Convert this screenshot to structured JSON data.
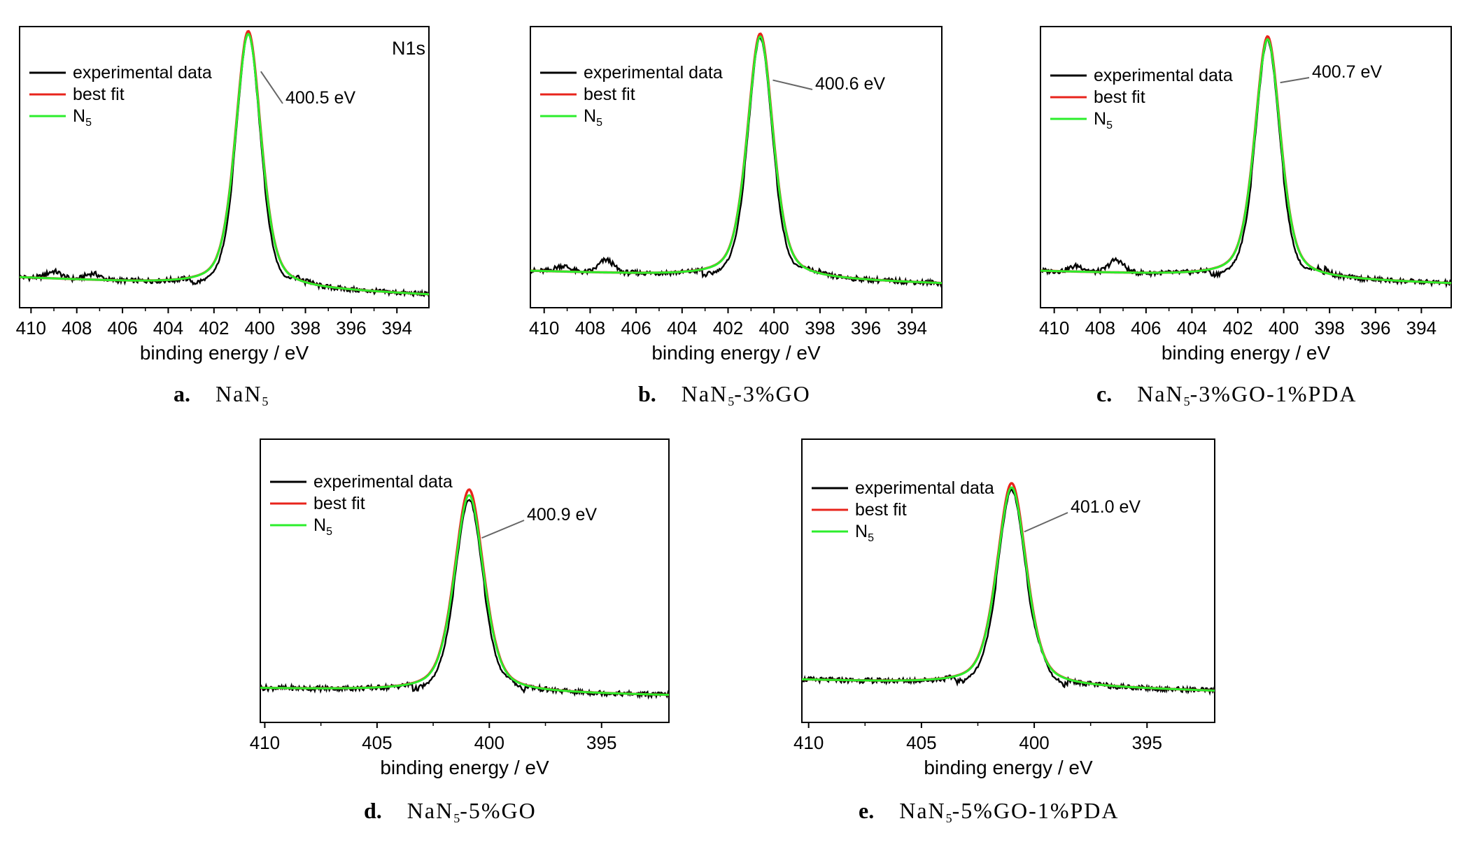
{
  "legend": {
    "experimental": "experimental data",
    "best_fit": "best fit",
    "n5_base": "N",
    "n5_sub": "5"
  },
  "colors": {
    "experimental": "#000000",
    "best_fit": "#e8241c",
    "n5": "#2cee2c",
    "axes": "#000000",
    "leader": "#666666"
  },
  "axis_label": "binding energy / eV",
  "captions": [
    {
      "letter": "a.",
      "base": "NaN",
      "sub": "5",
      "rest": ""
    },
    {
      "letter": "b.",
      "base": "NaN",
      "sub": "5",
      "rest": "-3%GO"
    },
    {
      "letter": "c.",
      "base": "NaN",
      "sub": "5",
      "rest": "-3%GO-1%PDA"
    },
    {
      "letter": "d.",
      "base": "NaN",
      "sub": "5",
      "rest": "-5%GO"
    },
    {
      "letter": "e.",
      "base": "NaN",
      "sub": "5",
      "rest": "-5%GO-1%PDA"
    }
  ],
  "chart_data": [
    {
      "type": "line",
      "corner_label": "N1s",
      "xlabel": "binding energy / eV",
      "xlim": [
        410.5,
        392.6
      ],
      "ylim": [
        0,
        1
      ],
      "x_reversed": true,
      "xticks": [
        410,
        408,
        406,
        404,
        402,
        400,
        398,
        396,
        394
      ],
      "peak_label": "400.5 eV",
      "peak_position": 400.5,
      "series": [
        {
          "name": "experimental data",
          "peak_height": 0.955,
          "width": 0.64
        },
        {
          "name": "best fit",
          "peak_height": 0.965,
          "width": 0.67
        },
        {
          "name": "N5",
          "peak_height": 0.955,
          "width": 0.67
        }
      ],
      "baseline_start": 0.107,
      "baseline_end": 0.045,
      "satellites": [
        {
          "x": 409.0,
          "h": 0.025
        },
        {
          "x": 407.3,
          "h": 0.022
        },
        {
          "x": 398.3,
          "h": 0.03
        }
      ]
    },
    {
      "type": "line",
      "xlabel": "binding energy / eV",
      "xlim": [
        410.6,
        392.7
      ],
      "ylim": [
        0,
        1
      ],
      "x_reversed": true,
      "xticks": [
        410,
        408,
        406,
        404,
        402,
        400,
        398,
        396,
        394
      ],
      "peak_label": "400.6 eV",
      "peak_position": 400.6,
      "series": [
        {
          "name": "experimental data",
          "peak_height": 0.92,
          "width": 0.64
        },
        {
          "name": "best fit",
          "peak_height": 0.935,
          "width": 0.67
        },
        {
          "name": "N5",
          "peak_height": 0.925,
          "width": 0.67
        }
      ],
      "baseline_start": 0.13,
      "baseline_end": 0.085,
      "satellites": [
        {
          "x": 409.2,
          "h": 0.02
        },
        {
          "x": 407.3,
          "h": 0.045
        },
        {
          "x": 398.5,
          "h": 0.03
        }
      ]
    },
    {
      "type": "line",
      "xlabel": "binding energy / eV",
      "xlim": [
        410.6,
        392.7
      ],
      "ylim": [
        0,
        1
      ],
      "x_reversed": true,
      "xticks": [
        410,
        408,
        406,
        404,
        402,
        400,
        398,
        396,
        394
      ],
      "peak_label": "400.7 eV",
      "peak_position": 400.7,
      "series": [
        {
          "name": "experimental data",
          "peak_height": 0.91,
          "width": 0.64
        },
        {
          "name": "best fit",
          "peak_height": 0.925,
          "width": 0.67
        },
        {
          "name": "N5",
          "peak_height": 0.915,
          "width": 0.67
        }
      ],
      "baseline_start": 0.13,
      "baseline_end": 0.085,
      "satellites": [
        {
          "x": 409.0,
          "h": 0.02
        },
        {
          "x": 407.3,
          "h": 0.045
        },
        {
          "x": 398.5,
          "h": 0.03
        }
      ]
    },
    {
      "type": "line",
      "xlabel": "binding energy / eV",
      "xlim": [
        410.2,
        392.0
      ],
      "ylim": [
        0,
        1
      ],
      "x_reversed": true,
      "xticks": [
        410,
        405,
        400,
        395
      ],
      "peak_label": "400.9 eV",
      "peak_position": 400.9,
      "series": [
        {
          "name": "experimental data",
          "peak_height": 0.74,
          "width": 0.75
        },
        {
          "name": "best fit",
          "peak_height": 0.775,
          "width": 0.78
        },
        {
          "name": "N5",
          "peak_height": 0.755,
          "width": 0.78
        }
      ],
      "baseline_start": 0.12,
      "baseline_end": 0.095,
      "satellites": [
        {
          "x": 399.0,
          "h": 0.02
        }
      ]
    },
    {
      "type": "line",
      "xlabel": "binding energy / eV",
      "xlim": [
        410.3,
        392.0
      ],
      "ylim": [
        0,
        1
      ],
      "x_reversed": true,
      "xticks": [
        410,
        405,
        400,
        395
      ],
      "peak_label": "401.0 eV",
      "peak_position": 401.0,
      "series": [
        {
          "name": "experimental data",
          "peak_height": 0.765,
          "width": 0.75
        },
        {
          "name": "best fit",
          "peak_height": 0.79,
          "width": 0.78
        },
        {
          "name": "N5",
          "peak_height": 0.775,
          "width": 0.78
        }
      ],
      "baseline_start": 0.15,
      "baseline_end": 0.11,
      "satellites": [
        {
          "x": 399.7,
          "h": 0.03
        }
      ]
    }
  ]
}
